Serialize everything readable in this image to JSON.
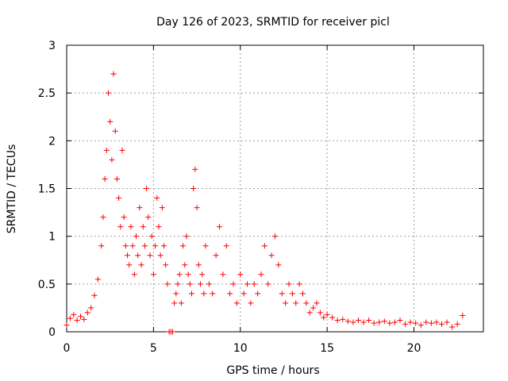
{
  "chart_data": {
    "type": "scatter",
    "title": "Day 126 of 2023, SRMTID for receiver picl",
    "xlabel": "GPS time / hours",
    "ylabel": "SRMTID / TECUs",
    "xlim": [
      0,
      24
    ],
    "ylim": [
      0,
      3
    ],
    "xticks": [
      0,
      5,
      10,
      15,
      20
    ],
    "xtick_labels": [
      "0",
      "5",
      "10",
      "15",
      "20"
    ],
    "yticks": [
      0,
      0.5,
      1,
      1.5,
      2,
      2.5,
      3
    ],
    "ytick_labels": [
      "0",
      "0.5",
      "1",
      "1.5",
      "2",
      "2.5",
      "3"
    ],
    "grid": true,
    "marker": "+",
    "series": [
      {
        "name": "SRMTID",
        "color": "#ff0000",
        "x": [
          0.0,
          0.2,
          0.4,
          0.6,
          0.8,
          1.0,
          1.2,
          1.4,
          1.6,
          1.8,
          2.0,
          2.1,
          2.2,
          2.3,
          2.4,
          2.5,
          2.6,
          2.7,
          2.8,
          2.9,
          3.0,
          3.1,
          3.2,
          3.3,
          3.4,
          3.5,
          3.6,
          3.7,
          3.8,
          3.9,
          4.0,
          4.1,
          4.2,
          4.3,
          4.4,
          4.5,
          4.6,
          4.7,
          4.8,
          4.9,
          5.0,
          5.1,
          5.2,
          5.3,
          5.4,
          5.5,
          5.6,
          5.7,
          5.8,
          5.9,
          6.0,
          6.1,
          6.2,
          6.3,
          6.4,
          6.5,
          6.6,
          6.7,
          6.8,
          6.9,
          7.0,
          7.1,
          7.2,
          7.3,
          7.4,
          7.5,
          7.6,
          7.7,
          7.8,
          7.9,
          8.0,
          8.2,
          8.4,
          8.6,
          8.8,
          9.0,
          9.2,
          9.4,
          9.6,
          9.8,
          10.0,
          10.2,
          10.4,
          10.6,
          10.8,
          11.0,
          11.2,
          11.4,
          11.6,
          11.8,
          12.0,
          12.2,
          12.4,
          12.6,
          12.8,
          13.0,
          13.2,
          13.4,
          13.6,
          13.8,
          14.0,
          14.2,
          14.4,
          14.6,
          14.8,
          15.0,
          15.3,
          15.6,
          15.9,
          16.2,
          16.5,
          16.8,
          17.1,
          17.4,
          17.7,
          18.0,
          18.3,
          18.6,
          18.9,
          19.2,
          19.5,
          19.8,
          20.1,
          20.4,
          20.7,
          21.0,
          21.3,
          21.6,
          21.9,
          22.2,
          22.5,
          22.8
        ],
        "y": [
          0.07,
          0.14,
          0.18,
          0.12,
          0.16,
          0.13,
          0.2,
          0.25,
          0.38,
          0.55,
          0.9,
          1.2,
          1.6,
          1.9,
          2.5,
          2.2,
          1.8,
          2.7,
          2.1,
          1.6,
          1.4,
          1.1,
          1.9,
          1.2,
          0.9,
          0.8,
          0.7,
          1.1,
          0.9,
          0.6,
          1.0,
          0.8,
          1.3,
          0.7,
          1.1,
          0.9,
          1.5,
          1.2,
          0.8,
          1.0,
          0.6,
          0.9,
          1.4,
          1.1,
          0.8,
          1.3,
          0.9,
          0.7,
          0.5,
          0.0,
          0.0,
          0.0,
          0.3,
          0.4,
          0.5,
          0.6,
          0.3,
          0.9,
          0.7,
          1.0,
          0.6,
          0.5,
          0.4,
          1.5,
          1.7,
          1.3,
          0.7,
          0.5,
          0.6,
          0.4,
          0.9,
          0.5,
          0.4,
          0.8,
          1.1,
          0.6,
          0.9,
          0.4,
          0.5,
          0.3,
          0.6,
          0.4,
          0.5,
          0.3,
          0.5,
          0.4,
          0.6,
          0.9,
          0.5,
          0.8,
          1.0,
          0.7,
          0.4,
          0.3,
          0.5,
          0.4,
          0.3,
          0.5,
          0.4,
          0.3,
          0.2,
          0.25,
          0.3,
          0.2,
          0.15,
          0.18,
          0.15,
          0.12,
          0.13,
          0.11,
          0.1,
          0.12,
          0.1,
          0.12,
          0.09,
          0.1,
          0.11,
          0.09,
          0.1,
          0.12,
          0.08,
          0.1,
          0.09,
          0.07,
          0.1,
          0.09,
          0.1,
          0.08,
          0.1,
          0.05,
          0.08,
          0.17
        ]
      }
    ]
  }
}
